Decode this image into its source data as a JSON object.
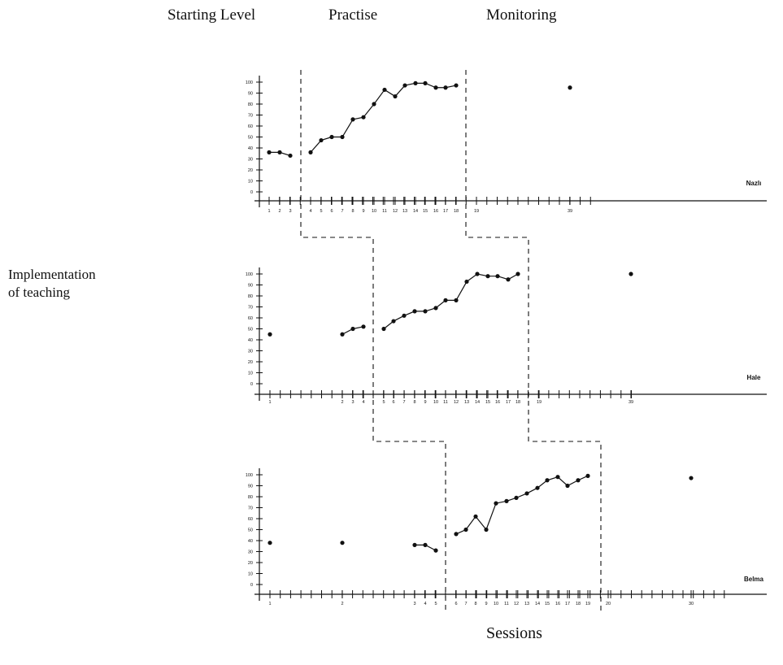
{
  "phases": {
    "starting": "Starting Level",
    "practise": "Practise",
    "monitoring": "Monitoring"
  },
  "implementation_label": [
    "Implementation",
    "of teaching"
  ],
  "x_axis_label": "Sessions",
  "chart_data": {
    "type": "line",
    "title": "",
    "xlabel": "Sessions",
    "ylabel": "",
    "ylim": [
      0,
      100
    ],
    "yticks": [
      0,
      10,
      20,
      30,
      40,
      50,
      60,
      70,
      80,
      90,
      100
    ],
    "panels": [
      {
        "name": "Nazlı",
        "segments": [
          {
            "phase": "Starting Level",
            "sessions": [
              1,
              2,
              3
            ],
            "values": [
              36,
              36,
              33
            ]
          },
          {
            "phase": "Practise",
            "sessions": [
              4,
              5,
              6,
              7,
              8,
              9,
              10,
              11,
              12,
              13,
              14,
              15,
              16,
              17,
              18
            ],
            "values": [
              36,
              47,
              50,
              50,
              66,
              68,
              80,
              93,
              87,
              97,
              99,
              99,
              95,
              95,
              97
            ]
          },
          {
            "phase": "Monitoring",
            "sessions": [
              39
            ],
            "values": [
              95
            ]
          }
        ],
        "tick_labels": [
          "1",
          "2",
          "3",
          "4",
          "5",
          "6",
          "7",
          "8",
          "9",
          "10",
          "11",
          "12",
          "13",
          "14",
          "15",
          "16",
          "17",
          "18",
          "19",
          "39"
        ]
      },
      {
        "name": "Hale",
        "segments": [
          {
            "phase": "Starting Level",
            "sessions": [
              1
            ],
            "values": [
              45
            ]
          },
          {
            "phase": "Starting Level",
            "sessions": [
              2,
              3,
              4
            ],
            "values": [
              45,
              50,
              52
            ]
          },
          {
            "phase": "Practise",
            "sessions": [
              5,
              6,
              7,
              8,
              9,
              10,
              11,
              12,
              13,
              14,
              15,
              16,
              17,
              18
            ],
            "values": [
              50,
              57,
              62,
              66,
              66,
              69,
              76,
              76,
              93,
              100,
              98,
              98,
              95,
              100
            ]
          },
          {
            "phase": "Monitoring",
            "sessions": [
              39
            ],
            "values": [
              100
            ]
          }
        ],
        "tick_labels": [
          "1",
          "2",
          "3",
          "4",
          "5",
          "6",
          "7",
          "8",
          "9",
          "10",
          "11",
          "12",
          "13",
          "14",
          "15",
          "16",
          "17",
          "18",
          "19",
          "39"
        ]
      },
      {
        "name": "Belma",
        "segments": [
          {
            "phase": "Starting Level",
            "sessions": [
              1
            ],
            "values": [
              38
            ]
          },
          {
            "phase": "Starting Level",
            "sessions": [
              2
            ],
            "values": [
              38
            ]
          },
          {
            "phase": "Starting Level",
            "sessions": [
              3,
              4,
              5
            ],
            "values": [
              36,
              36,
              31
            ]
          },
          {
            "phase": "Practise",
            "sessions": [
              6,
              7,
              8,
              9,
              10,
              11,
              12,
              13,
              14,
              15,
              16,
              17,
              18,
              19
            ],
            "values": [
              46,
              50,
              62,
              50,
              74,
              76,
              79,
              83,
              88,
              95,
              98,
              90,
              95,
              99
            ]
          },
          {
            "phase": "Monitoring",
            "sessions": [
              30
            ],
            "values": [
              97
            ]
          }
        ],
        "tick_labels": [
          "1",
          "2",
          "3",
          "4",
          "5",
          "6",
          "7",
          "8",
          "9",
          "10",
          "11",
          "12",
          "13",
          "14",
          "15",
          "16",
          "17",
          "18",
          "19",
          "20",
          "30"
        ]
      }
    ]
  }
}
